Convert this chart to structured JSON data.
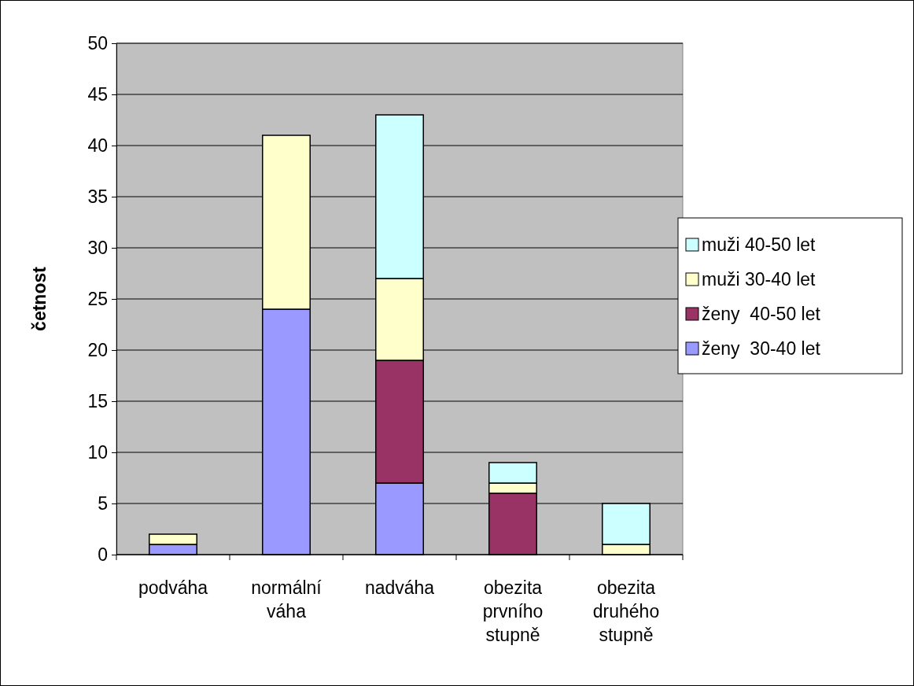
{
  "chart_data": {
    "type": "bar",
    "stacked": true,
    "ylabel": "četnost",
    "categories": [
      "podváha",
      "normální váha",
      "nadváha",
      "obezita prvního stupně",
      "obezita druhého stupně"
    ],
    "series": [
      {
        "name": "ženy  30-40 let",
        "color": "#9999ff",
        "values": [
          1,
          24,
          7,
          0,
          0
        ]
      },
      {
        "name": "ženy  40-50 let",
        "color": "#993366",
        "values": [
          0,
          0,
          12,
          6,
          0
        ]
      },
      {
        "name": "muži 30-40 let",
        "color": "#ffffcc",
        "values": [
          1,
          17,
          8,
          1,
          1
        ]
      },
      {
        "name": "muži 40-50 let",
        "color": "#ccffff",
        "values": [
          0,
          0,
          16,
          2,
          4
        ]
      }
    ],
    "ylim": [
      0,
      50
    ],
    "yticks": [
      0,
      5,
      10,
      15,
      20,
      25,
      30,
      35,
      40,
      45,
      50
    ],
    "grid": "y",
    "legend": "right"
  }
}
